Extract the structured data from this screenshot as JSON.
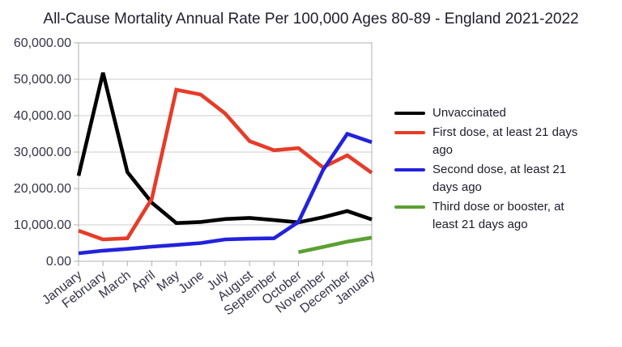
{
  "title": "All-Cause Mortality Annual Rate Per 100,000 Ages 80-89 - England 2021-2022",
  "chart_data": {
    "type": "line",
    "title": "All-Cause Mortality Annual Rate Per 100,000 Ages 80-89 - England 2021-2022",
    "categories": [
      "January",
      "February",
      "March",
      "April",
      "May",
      "June",
      "July",
      "August",
      "September",
      "October",
      "November",
      "December",
      "January"
    ],
    "xlabel": "",
    "ylabel": "",
    "ylim": [
      0,
      60000
    ],
    "y_tick_step": 10000,
    "y_tick_labels": [
      "60,000.00",
      "50,000.00",
      "40,000.00",
      "30,000.00",
      "20,000.00",
      "10,000.00",
      "0.00"
    ],
    "grid": true,
    "legend_position": "right",
    "series": [
      {
        "name": "Unvaccinated",
        "color": "#000000",
        "values": [
          23500,
          51800,
          24500,
          16100,
          10500,
          10800,
          11600,
          11900,
          11300,
          10700,
          12100,
          13800,
          11500
        ]
      },
      {
        "name": "First dose, at least 21 days ago",
        "color": "#e63c28",
        "values": [
          8400,
          6000,
          6300,
          17200,
          47100,
          45800,
          40600,
          33000,
          30500,
          31100,
          25800,
          29100,
          24300
        ]
      },
      {
        "name": "Second dose, at least 21 days ago",
        "color": "#2222dd",
        "values": [
          2200,
          2900,
          3400,
          4000,
          4500,
          5000,
          6000,
          6200,
          6300,
          10800,
          25000,
          35000,
          32700
        ]
      },
      {
        "name": "Third dose or booster, at least 21 days ago",
        "color": "#5aa032",
        "values": [
          null,
          null,
          null,
          null,
          null,
          null,
          null,
          null,
          null,
          2500,
          3900,
          5400,
          6500
        ]
      }
    ],
    "axis_text_color": "#34344a",
    "grid_color": "#cccccc",
    "border_color": "#b0b0b0"
  }
}
